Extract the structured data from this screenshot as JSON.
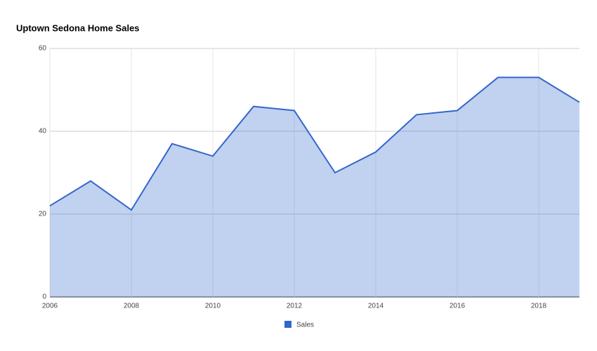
{
  "chart_data": {
    "type": "area",
    "title": "Uptown Sedona Home Sales",
    "x": [
      2006,
      2007,
      2008,
      2009,
      2010,
      2011,
      2012,
      2013,
      2014,
      2015,
      2016,
      2017,
      2018,
      2019
    ],
    "series": [
      {
        "name": "Sales",
        "color": "#3366cc",
        "values": [
          22,
          28,
          21,
          37,
          34,
          46,
          45,
          30,
          35,
          44,
          45,
          53,
          53,
          47
        ]
      }
    ],
    "xlim": [
      2006,
      2019
    ],
    "xticks": [
      2006,
      2008,
      2010,
      2012,
      2014,
      2016,
      2018
    ],
    "ylim": [
      0,
      60
    ],
    "yticks": [
      0,
      20,
      40,
      60
    ],
    "grid": true,
    "legend": "bottom"
  }
}
